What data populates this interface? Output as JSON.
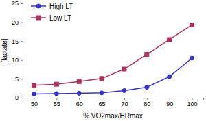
{
  "chart_data": {
    "type": "line",
    "x_label": "% VO2max/HRmax",
    "y_label": "[lactate]",
    "categories": [
      "50",
      "55",
      "60",
      "65",
      "70",
      "80",
      "90",
      "100"
    ],
    "series": [
      {
        "name": "High LT",
        "color": "#3333cc",
        "marker": "circle",
        "line_style": "solid",
        "values": [
          1.0,
          1.1,
          1.2,
          1.3,
          1.9,
          2.8,
          5.6,
          10.5
        ]
      },
      {
        "name": "Low LT",
        "color": "#b0305e",
        "marker": "square",
        "line_style": "solid",
        "values": [
          3.3,
          3.6,
          4.3,
          5.1,
          7.6,
          11.5,
          15.4,
          19.3
        ]
      }
    ],
    "ylim": [
      0,
      25
    ],
    "yticks": [
      0,
      5,
      10,
      15,
      20,
      25
    ],
    "grid": false,
    "legend": "top-left"
  }
}
